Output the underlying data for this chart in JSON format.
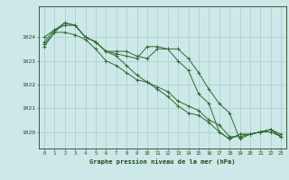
{
  "title": "Graphe pression niveau de la mer (hPa)",
  "background_color": "#cce8e8",
  "grid_color": "#aacccc",
  "line_color": "#2d6b2d",
  "text_color": "#1a4a1a",
  "xlim": [
    -0.5,
    23.5
  ],
  "ylim": [
    1019.3,
    1025.3
  ],
  "yticks": [
    1020,
    1021,
    1022,
    1023,
    1024
  ],
  "xticks": [
    0,
    1,
    2,
    3,
    4,
    5,
    6,
    7,
    8,
    9,
    10,
    11,
    12,
    13,
    14,
    15,
    16,
    17,
    18,
    19,
    20,
    21,
    22,
    23
  ],
  "series": [
    [
      1023.8,
      1024.3,
      1024.5,
      1024.5,
      1024.0,
      1023.8,
      1023.4,
      1023.4,
      1023.4,
      1023.2,
      1023.1,
      1023.5,
      1023.5,
      1023.5,
      1023.1,
      1022.5,
      1021.8,
      1021.2,
      1020.8,
      1019.7,
      1019.9,
      1020.0,
      1020.0,
      1019.8
    ],
    [
      1024.0,
      1024.3,
      1024.6,
      1024.5,
      1024.0,
      1023.8,
      1023.4,
      1023.3,
      1023.2,
      1023.1,
      1023.6,
      1023.6,
      1023.5,
      1023.0,
      1022.6,
      1021.6,
      1021.2,
      1020.0,
      1019.7,
      1019.9,
      1019.9,
      1020.0,
      1020.1,
      1019.8
    ],
    [
      1023.7,
      1024.2,
      1024.2,
      1024.1,
      1023.9,
      1023.5,
      1023.0,
      1022.8,
      1022.5,
      1022.2,
      1022.1,
      1021.8,
      1021.5,
      1021.1,
      1020.8,
      1020.7,
      1020.4,
      1020.0,
      1019.7,
      1019.9,
      1019.9,
      1020.0,
      1020.1,
      1019.9
    ],
    [
      1023.6,
      1024.2,
      1024.6,
      1024.5,
      1024.0,
      1023.8,
      1023.4,
      1023.2,
      1022.8,
      1022.4,
      1022.1,
      1021.9,
      1021.7,
      1021.3,
      1021.1,
      1020.9,
      1020.5,
      1020.3,
      1019.8,
      1019.8,
      1019.9,
      1020.0,
      1020.1,
      1019.8
    ]
  ]
}
